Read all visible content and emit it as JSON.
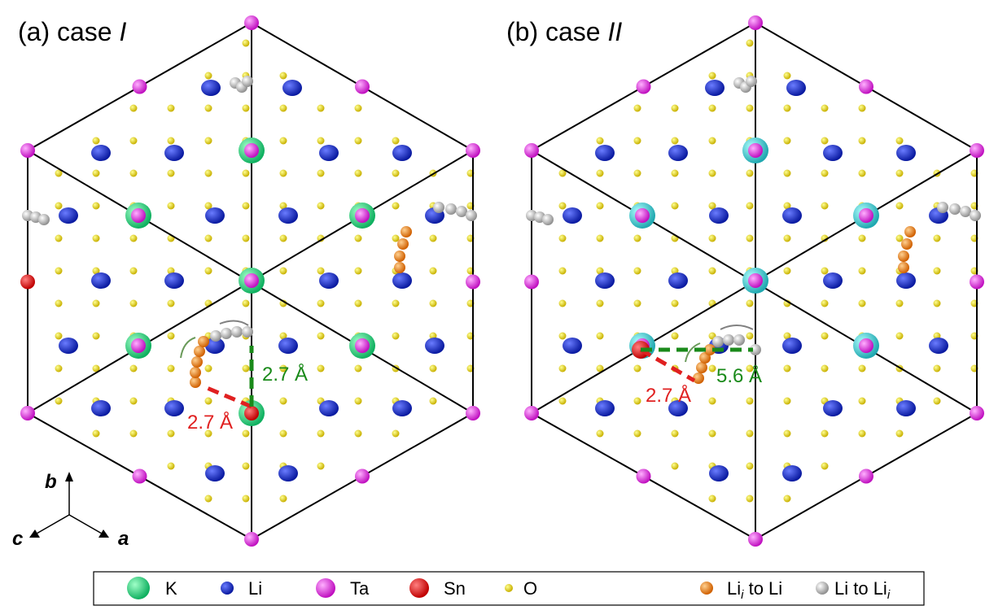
{
  "panels": [
    {
      "label": "(a) case ",
      "case": "I",
      "distances": [
        "2.7 Å",
        "2.7 Å"
      ]
    },
    {
      "label": "(b) case ",
      "case": "II",
      "distances": [
        "2.7 Å",
        "5.6 Å"
      ]
    }
  ],
  "axes": {
    "a": "a",
    "b": "b",
    "c": "c"
  },
  "legend": [
    {
      "label": "K"
    },
    {
      "label": "Li"
    },
    {
      "label": "Ta"
    },
    {
      "label": "Sn"
    },
    {
      "label": "O"
    },
    {
      "text": "Li",
      "sub": "i",
      "suffix": " to Li"
    },
    {
      "text": "Li to Li",
      "sub": "i"
    }
  ]
}
